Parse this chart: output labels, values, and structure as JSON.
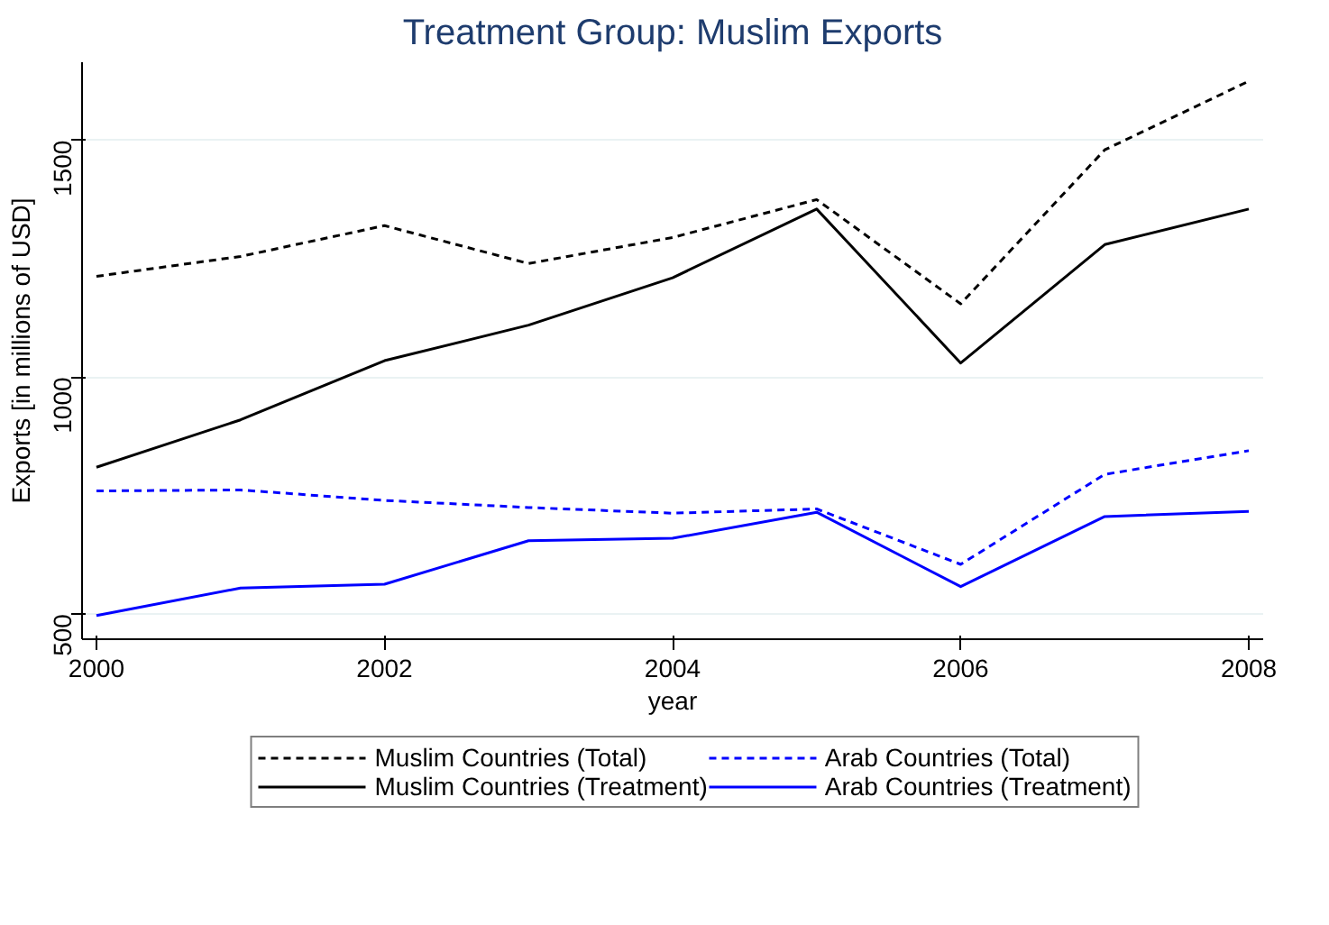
{
  "chart_data": {
    "type": "line",
    "title": "Treatment Group: Muslim Exports",
    "xlabel": "year",
    "ylabel": "Exports [in millions of USD]",
    "x": [
      2000,
      2001,
      2002,
      2003,
      2004,
      2005,
      2006,
      2007,
      2008
    ],
    "series": [
      {
        "name": "Muslim Countries (Total)",
        "color": "#000000",
        "line_style": "dashed",
        "values": [
          1213,
          1255,
          1320,
          1240,
          1295,
          1375,
          1155,
          1480,
          1625
        ]
      },
      {
        "name": "Muslim Countries (Treatment)",
        "color": "#000000",
        "line_style": "solid",
        "values": [
          810,
          910,
          1035,
          1110,
          1210,
          1355,
          1030,
          1280,
          1355
        ]
      },
      {
        "name": "Arab Countries (Total)",
        "color": "#0000ff",
        "line_style": "dashed",
        "values": [
          760,
          762,
          740,
          725,
          713,
          722,
          605,
          795,
          845
        ]
      },
      {
        "name": "Arab Countries (Treatment)",
        "color": "#0000ff",
        "line_style": "solid",
        "values": [
          497,
          555,
          563,
          655,
          660,
          715,
          558,
          706,
          717
        ]
      }
    ],
    "xlim": [
      1999.9,
      2008.1
    ],
    "ylim": [
      447,
      1665
    ],
    "xticks": [
      2000,
      2002,
      2004,
      2006,
      2008
    ],
    "yticks": [
      500,
      1000,
      1500
    ],
    "grid": "y",
    "legend": "bottom",
    "marker": "none"
  }
}
